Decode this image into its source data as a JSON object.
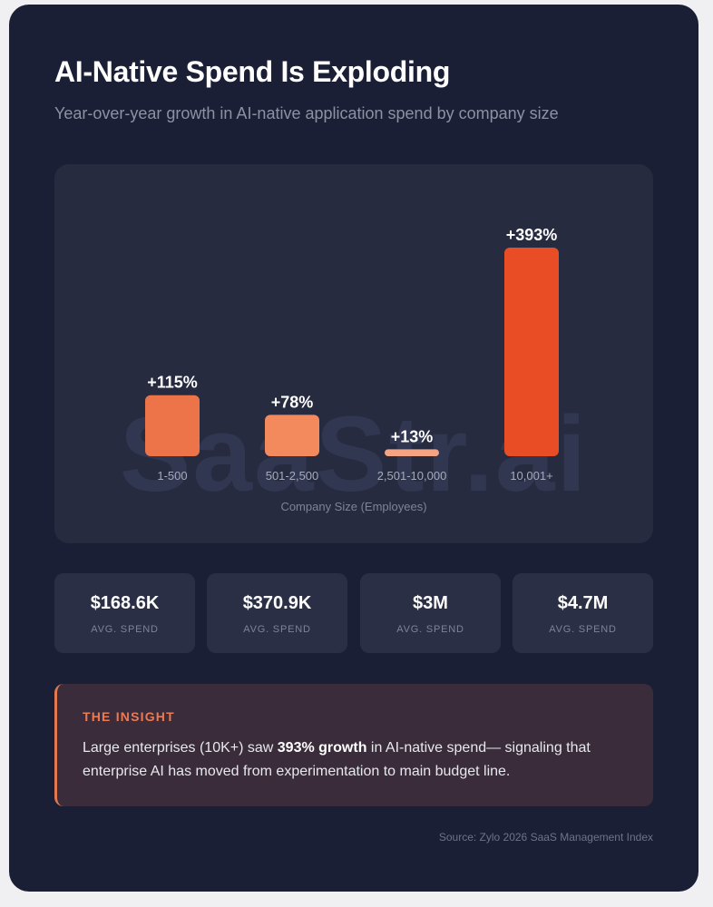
{
  "header": {
    "title": "AI-Native Spend Is Exploding",
    "subtitle": "Year-over-year growth in AI-native application spend by company size"
  },
  "watermark": "SaaStr.ai",
  "chart_data": {
    "type": "bar",
    "categories": [
      "1-500",
      "501-2,500",
      "2,501-10,000",
      "10,001+"
    ],
    "values": [
      115,
      78,
      13,
      393
    ],
    "value_labels": [
      "+115%",
      "+78%",
      "+13%",
      "+393%"
    ],
    "bar_colors": [
      "#ec7448",
      "#f28a5e",
      "#f4a383",
      "#e84d25"
    ],
    "title": "",
    "xlabel": "Company Size (Employees)",
    "ylabel": "",
    "ylim": [
      0,
      393
    ],
    "grid": false,
    "legend": "none"
  },
  "stats": [
    {
      "value": "$168.6K",
      "caption": "AVG. SPEND"
    },
    {
      "value": "$370.9K",
      "caption": "AVG. SPEND"
    },
    {
      "value": "$3M",
      "caption": "AVG. SPEND"
    },
    {
      "value": "$4.7M",
      "caption": "AVG. SPEND"
    }
  ],
  "insight": {
    "heading": "THE INSIGHT",
    "text_before": "Large enterprises (10K+) saw ",
    "text_bold": "393% growth",
    "text_after": " in AI-native spend— signaling that enterprise AI has moved from experimentation to main budget line."
  },
  "source": "Source: Zylo 2026 SaaS Management Index",
  "colors": {
    "background": "#1a1f35",
    "panel": "#262b40",
    "accent": "#e84d25",
    "insight_bg": "#3a2c3a"
  }
}
